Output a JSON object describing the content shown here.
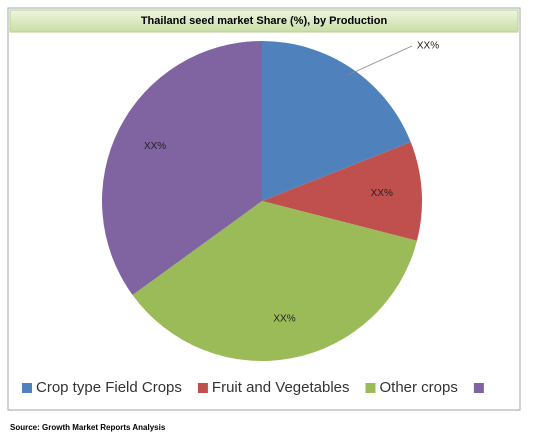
{
  "chart_data": {
    "type": "pie",
    "title": "Thailand seed market Share (%), by Production",
    "categories": [
      "Crop type Field Crops",
      "Fruit and Vegetables",
      "Other crops",
      null
    ],
    "values": [
      19,
      10,
      36,
      35
    ],
    "value_labels": [
      "XX%",
      "XX%",
      "XX%",
      "XX%"
    ],
    "colors": [
      "#4f81bd",
      "#c0504d",
      "#9bbb59",
      "#8064a2"
    ],
    "legend": "bottom",
    "source": "Source: Growth Market Reports Analysis"
  }
}
